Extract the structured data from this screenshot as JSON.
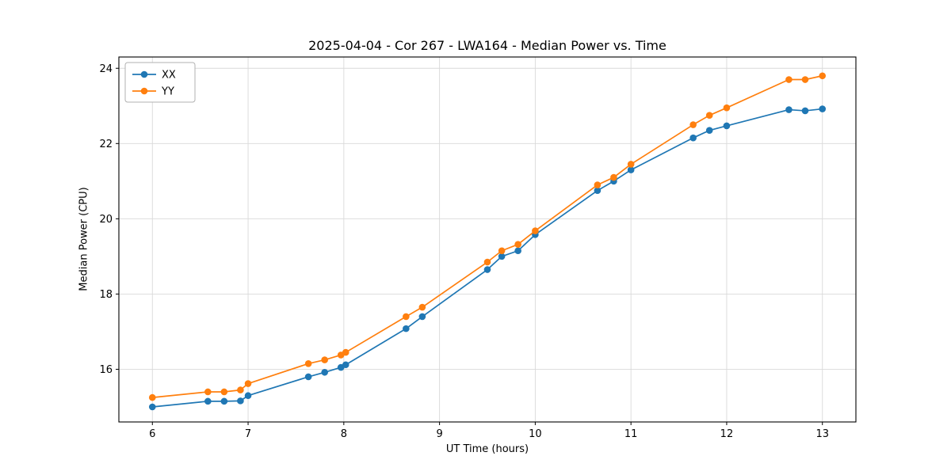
{
  "chart_data": {
    "type": "line",
    "title": "2025-04-04 - Cor 267 - LWA164 - Median Power vs. Time",
    "xlabel": "UT Time (hours)",
    "ylabel": "Median Power (CPU)",
    "xlim": [
      5.65,
      13.35
    ],
    "ylim": [
      14.6,
      24.3
    ],
    "xticks": [
      6,
      7,
      8,
      9,
      10,
      11,
      12,
      13
    ],
    "yticks": [
      16,
      18,
      20,
      22,
      24
    ],
    "grid": true,
    "legend_position": "upper-left",
    "x": [
      6.0,
      6.58,
      6.75,
      6.92,
      7.0,
      7.63,
      7.8,
      7.97,
      8.02,
      8.65,
      8.82,
      9.5,
      9.65,
      9.82,
      10.0,
      10.65,
      10.82,
      11.0,
      11.65,
      11.82,
      12.0,
      12.65,
      12.82,
      13.0
    ],
    "series": [
      {
        "name": "XX",
        "color": "#1f77b4",
        "marker": "circle",
        "values": [
          15.0,
          15.15,
          15.15,
          15.16,
          15.3,
          15.8,
          15.92,
          16.05,
          16.12,
          17.08,
          17.4,
          18.65,
          19.0,
          19.15,
          19.58,
          20.75,
          21.0,
          21.3,
          22.15,
          22.35,
          22.47,
          22.9,
          22.87,
          22.92
        ]
      },
      {
        "name": "YY",
        "color": "#ff7f0e",
        "marker": "circle",
        "values": [
          15.25,
          15.4,
          15.4,
          15.45,
          15.62,
          16.15,
          16.25,
          16.38,
          16.45,
          17.4,
          17.65,
          18.85,
          19.15,
          19.32,
          19.68,
          20.9,
          21.1,
          21.45,
          22.5,
          22.75,
          22.95,
          23.7,
          23.7,
          23.8
        ]
      }
    ]
  },
  "colors": {
    "grid": "#d9d9d9",
    "spine": "#000000",
    "legend_border": "#b0b0b0",
    "text": "#000000"
  }
}
